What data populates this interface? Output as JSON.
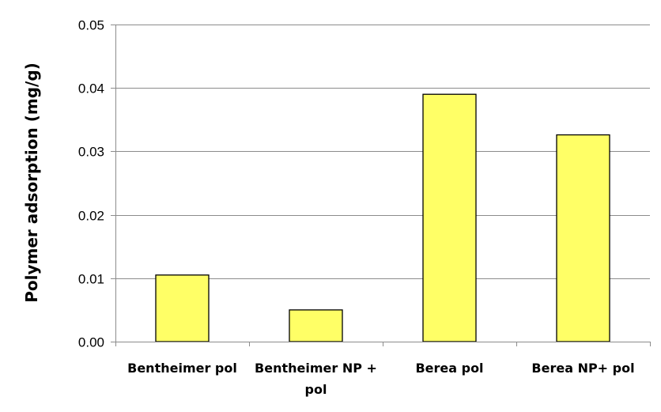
{
  "chart_data": {
    "type": "bar",
    "title": "",
    "xlabel": "",
    "ylabel": "Polymer adsorption (mg/g)",
    "categories": [
      [
        "Bentheimer pol"
      ],
      [
        "Bentheimer NP +",
        "pol"
      ],
      [
        "Berea pol"
      ],
      [
        "Berea NP+ pol"
      ]
    ],
    "values": [
      0.0105,
      0.005,
      0.039,
      0.0326
    ],
    "ylim": [
      0,
      0.05
    ],
    "yticks": [
      "0.00",
      "0.01",
      "0.02",
      "0.03",
      "0.04",
      "0.05"
    ],
    "grid": "horizontal",
    "legend": "none",
    "bar_color": "#FFFF66",
    "bar_edge_color": "#000000",
    "grid_color": "#8C8C8C",
    "axis_color": "#8C8C8C"
  }
}
